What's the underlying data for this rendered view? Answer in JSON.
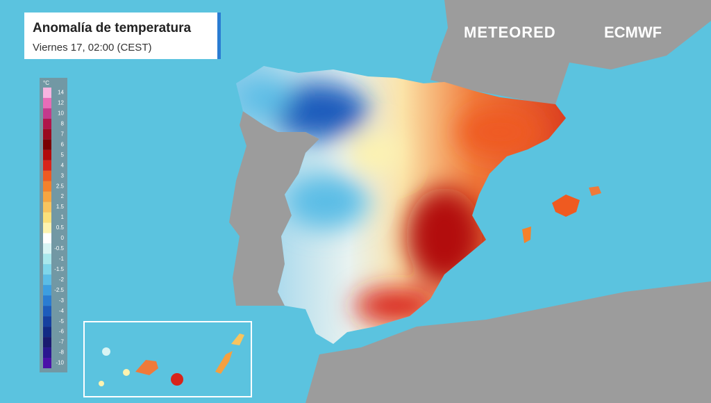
{
  "header": {
    "title": "Anomalía de temperatura",
    "subtitle": "Viernes 17, 02:00 (CEST)"
  },
  "logos": [
    "METEORED",
    "ECMWF"
  ],
  "legend": {
    "unit": "°C",
    "labels": [
      14,
      12,
      10,
      8,
      7,
      6,
      5,
      4,
      3,
      2.5,
      2,
      1.5,
      1,
      0.5,
      0,
      -0.5,
      -1,
      -1.5,
      -2,
      -2.5,
      -3,
      -4,
      -5,
      -6,
      -7,
      -8,
      -10
    ],
    "colors": [
      "#f7b4e0",
      "#e86cb8",
      "#c43a8c",
      "#b0154a",
      "#9a0a1e",
      "#7a0000",
      "#b20a0a",
      "#d8241a",
      "#ef5a20",
      "#f5812a",
      "#f7a540",
      "#f9c45e",
      "#fbe07a",
      "#fdf3b0",
      "#ffffff",
      "#d8f4f4",
      "#a9e8ec",
      "#7fd6ea",
      "#5bbde6",
      "#3d9ee0",
      "#2a7cd2",
      "#1d5cbc",
      "#1640a0",
      "#122a85",
      "#1a1a70",
      "#2a1690",
      "#4a10a8"
    ]
  }
}
